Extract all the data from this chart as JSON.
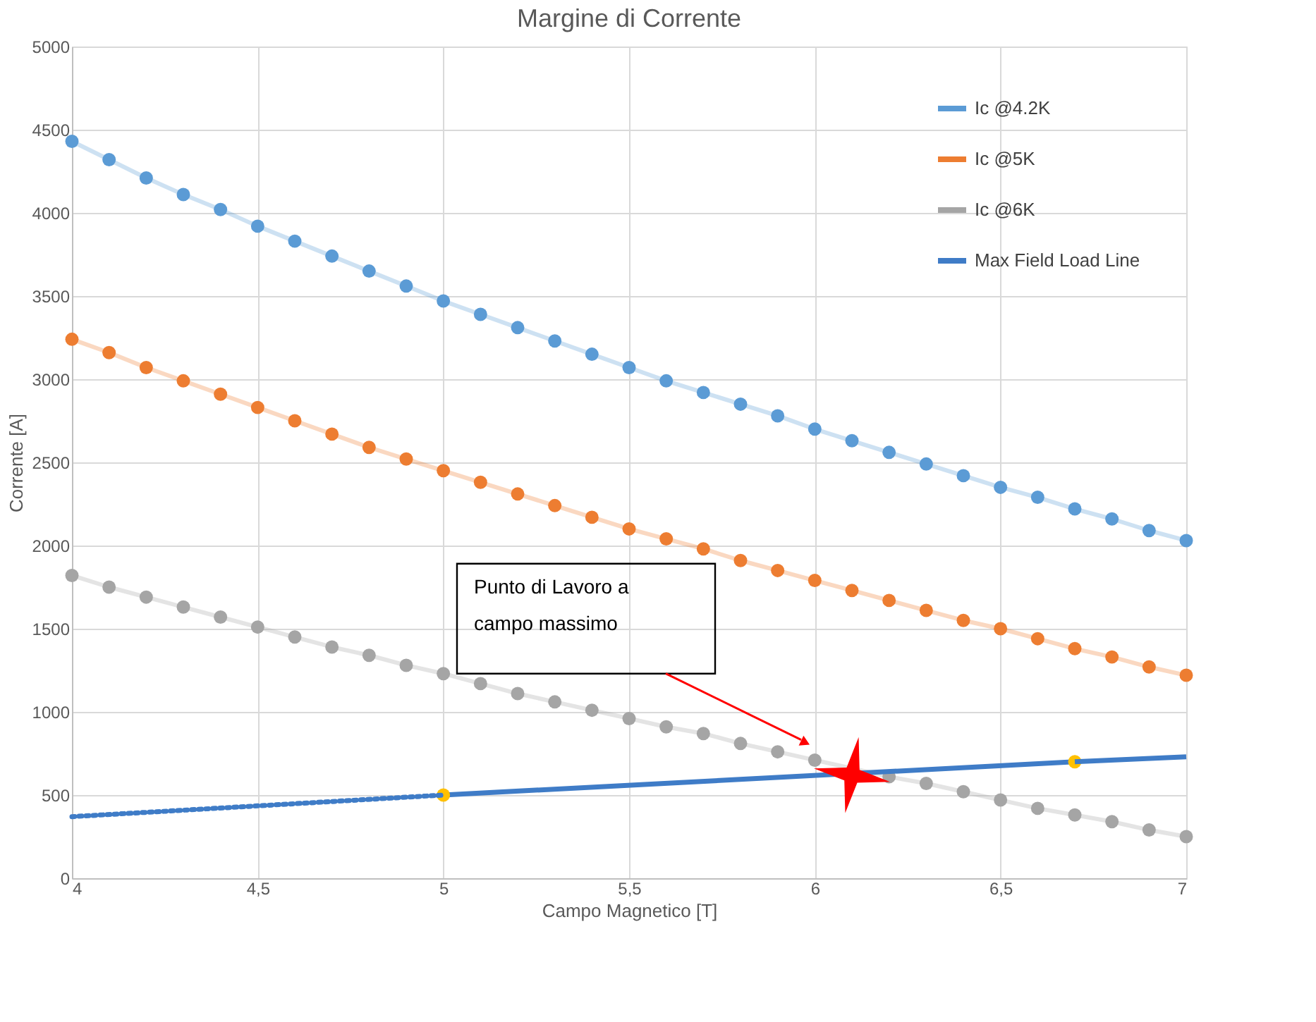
{
  "chart_data": {
    "type": "line",
    "title": "Margine di Corrente",
    "xlabel": "Campo Magnetico [T]",
    "ylabel": "Corrente [A]",
    "xlim": [
      4,
      7
    ],
    "ylim": [
      0,
      5000
    ],
    "xticks": [
      4,
      {
        "value": 4.5,
        "label": "4,5"
      },
      5,
      {
        "value": 5.5,
        "label": "5,5"
      },
      6,
      {
        "value": 6.5,
        "label": "6,5"
      },
      7
    ],
    "yticks": [
      0,
      500,
      1000,
      1500,
      2000,
      2500,
      3000,
      3500,
      4000,
      4500,
      5000
    ],
    "grid": true,
    "legend": "top right",
    "marker": "circle",
    "line_style": "solid",
    "x": [
      4,
      4.1,
      4.2,
      4.3,
      4.4,
      4.5,
      4.6,
      4.7,
      4.8,
      4.9,
      5,
      5.1,
      5.2,
      5.3,
      5.4,
      5.5,
      5.6,
      5.7,
      5.8,
      5.9,
      6,
      6.1,
      6.2,
      6.3,
      6.4,
      6.5,
      6.6,
      6.7,
      6.8,
      6.9,
      7
    ],
    "series": [
      {
        "name": "Ic @4.2K",
        "color": "#5b9bd5",
        "values": [
          4430,
          4320,
          4210,
          4110,
          4020,
          3920,
          3830,
          3740,
          3650,
          3560,
          3470,
          3390,
          3310,
          3230,
          3150,
          3070,
          2990,
          2920,
          2850,
          2780,
          2700,
          2630,
          2560,
          2490,
          2420,
          2350,
          2290,
          2220,
          2160,
          2090,
          2030
        ]
      },
      {
        "name": "Ic @5K",
        "color": "#ed7d31",
        "values": [
          3240,
          3160,
          3070,
          2990,
          2910,
          2830,
          2750,
          2670,
          2590,
          2520,
          2450,
          2380,
          2310,
          2240,
          2170,
          2100,
          2040,
          1980,
          1910,
          1850,
          1790,
          1730,
          1670,
          1610,
          1550,
          1500,
          1440,
          1380,
          1330,
          1270,
          1220
        ]
      },
      {
        "name": "Ic @6K",
        "color": "#a5a5a5",
        "values": [
          1820,
          1750,
          1690,
          1630,
          1570,
          1510,
          1450,
          1390,
          1340,
          1280,
          1230,
          1170,
          1110,
          1060,
          1010,
          960,
          910,
          870,
          810,
          760,
          710,
          null,
          610,
          570,
          520,
          470,
          420,
          380,
          340,
          290,
          250
        ]
      },
      {
        "name": "Max Field Load Line",
        "color": "#3f7cc7",
        "colors": [
          "#ffc000",
          "#ffc000"
        ],
        "x": [
          5,
          6.7
        ],
        "values": [
          500,
          700
        ]
      },
      {
        "color": "#3f7cc7",
        "x": [
          6.7,
          7
        ],
        "values": [
          700,
          730
        ],
        "marker": "none"
      },
      {
        "color": "#3f7cc7",
        "x": [
          4,
          5
        ],
        "values": [
          370,
          500
        ],
        "marker": "none",
        "line_style": "dotted"
      },
      {
        "type": "scatter",
        "color": "#ff0000",
        "marker": "star",
        "x": [
          6.1
        ],
        "values": [
          620
        ]
      }
    ],
    "annotations": [
      "Punto di Lavoro a\ncampo massimo"
    ]
  }
}
